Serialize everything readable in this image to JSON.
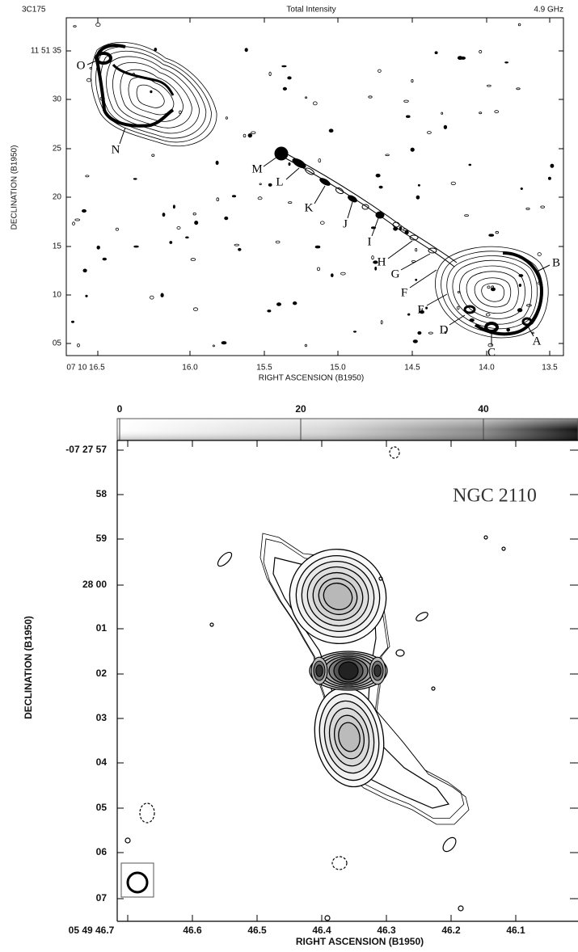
{
  "panels": [
    {
      "header": {
        "left": "3C175",
        "center": "Total Intensity",
        "right": "4.9 GHz"
      },
      "y_axis": {
        "label": "DECLINATION (B1950)",
        "ticks": [
          "11 51 35",
          "30",
          "25",
          "20",
          "15",
          "10",
          "05"
        ]
      },
      "x_axis": {
        "label": "RIGHT ASCENSION (B1950)",
        "ticks": [
          "07 10 16.5",
          "16.0",
          "15.5",
          "15.0",
          "14.5",
          "14.0",
          "13.5"
        ]
      },
      "components": [
        "O",
        "N",
        "M",
        "L",
        "K",
        "J",
        "I",
        "H",
        "G",
        "F",
        "E",
        "D",
        "C",
        "A",
        "B"
      ]
    },
    {
      "title": "NGC 2110",
      "colorbar_ticks": [
        "0",
        "20",
        "40"
      ],
      "y_axis": {
        "label": "DECLINATION (B1950)",
        "ticks": [
          "-07 27 57",
          "58",
          "59",
          "28 00",
          "01",
          "02",
          "03",
          "04",
          "05",
          "06",
          "07"
        ]
      },
      "x_axis": {
        "label": "RIGHT ASCENSION (B1950)",
        "ticks": [
          "05 49 46.7",
          "46.6",
          "46.5",
          "46.4",
          "46.3",
          "46.2",
          "46.1"
        ]
      }
    }
  ]
}
